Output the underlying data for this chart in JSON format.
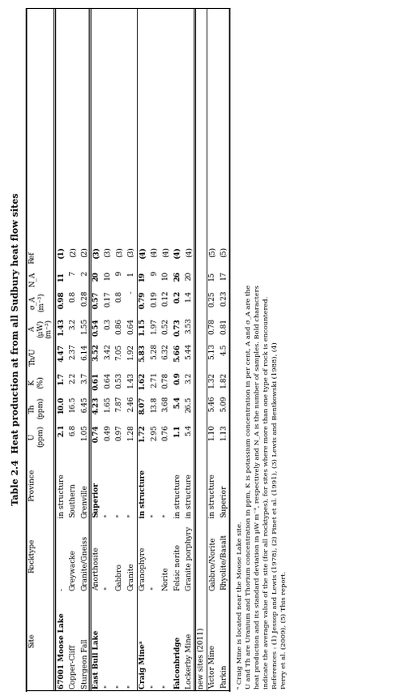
{
  "title": "Table 2.4  Heat production at from all Sudbury heat flow sites",
  "rows": [
    [
      "67001 Moose Lake",
      "-",
      "in structure",
      "2.1",
      "10.0",
      "1.7",
      "4.47",
      "1.43",
      "0.98",
      "11",
      "(1)"
    ],
    [
      "Copper-Cliff",
      "Greywacke",
      "Southern",
      "6.8",
      "16.5",
      "2.2",
      "2.37",
      "3.2",
      "0.8",
      "7",
      "(2)"
    ],
    [
      "Sturgeon Fall",
      "Granite/Gneiss",
      "Grenville",
      "1.05",
      "6.45",
      "3.7",
      "6.14",
      "1.55",
      "0.28",
      "2",
      "(2)"
    ],
    [
      "East Bull Lake",
      "Anorthosite",
      "Superior",
      "0.74",
      "4.23",
      "0.61",
      "3.52",
      "0.54",
      "0.57",
      "20",
      "(3)"
    ],
    [
      "\"",
      "\"",
      "\"",
      "0.49",
      "1.65",
      "0.64",
      "3.42",
      "0.3",
      "0.17",
      "10",
      "(3)"
    ],
    [
      "\"",
      "Gabbro",
      "\"",
      "0.97",
      "7.87",
      "0.53",
      "7.05",
      "0.86",
      "0.8",
      "9",
      "(3)"
    ],
    [
      "\"",
      "Granite",
      "\"",
      "1.28",
      "2.46",
      "1.43",
      "1.92",
      "0.64",
      "-",
      "1",
      "(3)"
    ],
    [
      "Craig Mineᵃ",
      "Granophyre",
      "in structure",
      "1.72",
      "8.07",
      "1.62",
      "5.83",
      "1.15",
      "0.79",
      "19",
      "(4)"
    ],
    [
      "\"",
      "\"",
      "\"",
      "2.95",
      "13.8",
      "2.71",
      "5.28",
      "1.97",
      "0.19",
      "9",
      "(4)"
    ],
    [
      "\"",
      "Norite",
      "\"",
      "0.76",
      "3.68",
      "0.78",
      "6.32",
      "0.52",
      "0.12",
      "10",
      "(4)"
    ],
    [
      "Falconbridge",
      "Felsic norite",
      "in structure",
      "1.1",
      "5.4",
      "0.9",
      "5.66",
      "0.73",
      "0.2",
      "26",
      "(4)"
    ],
    [
      "Lockerby Mine",
      "Granite porphyry",
      "in structure",
      "5.4",
      "26.5",
      "3.2",
      "5.44",
      "3.53",
      "1.4",
      "20",
      "(4)"
    ],
    [
      "new sites (2011)",
      "",
      "",
      "",
      "",
      "",
      "",
      "",
      "",
      "",
      ""
    ],
    [
      "Victor Mine",
      "Gabbro/Norite",
      "in structure",
      "1.10",
      "5.46",
      "1.32",
      "5.13",
      "0.78",
      "0.25",
      "15",
      "(5)"
    ],
    [
      "Parkin",
      "Rhyolite/Basalt",
      "Superior",
      "1.13",
      "5.09",
      "1.82",
      "4.5",
      "0.81",
      "0.23",
      "17",
      "(5)"
    ]
  ],
  "bold_rows": [
    0,
    3,
    7,
    10
  ],
  "section_dividers_after": [
    2,
    6,
    11,
    12
  ],
  "double_line_after": [
    2,
    11
  ],
  "col_headers_line1": [
    "Site",
    "Rocktype",
    "Province",
    "U",
    "Th",
    "K",
    "Th/U",
    "A",
    "σ_A",
    "N_A",
    "Ref"
  ],
  "col_headers_line2": [
    "",
    "",
    "",
    "(ppm)",
    "(ppm)",
    "(%)",
    "",
    "(μW)",
    "(m⁻³)",
    "",
    ""
  ],
  "col_headers_line3": [
    "",
    "",
    "",
    "",
    "",
    "",
    "",
    "(m⁻³)",
    "",
    "",
    ""
  ],
  "footnote_a": "ᵃ Craig Mine is located near the Moose Lake site.",
  "footnote_b": "U and Th are Uranium and Thorium concentration in ppm, K is potassium concentration in per cent, A and σ_A are the",
  "footnote_c": "heat production and its standard deviation in μW m⁻³, respectively and N_A is the number of samples. Bold characters",
  "footnote_d": "indicate the average value of the site (for all rocktypes), for sites where more than one type of rock is encountered.",
  "footnote_e": "References : (1) Jessop and Lewis (1978), (2) Pinet et al. (1991), (3) Lewis and Bentkowski (1988), (4)",
  "footnote_f": "Perry et al. (2009), (5) This report.",
  "bg_color": "#ffffff",
  "text_color": "#000000"
}
